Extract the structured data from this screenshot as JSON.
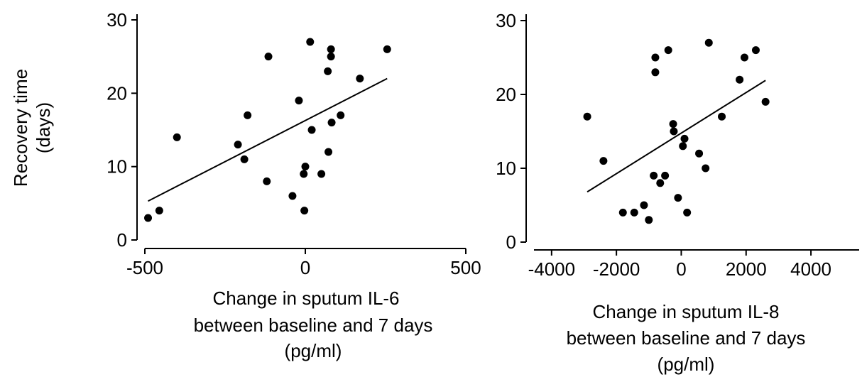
{
  "shared": {
    "ylabel_line1": "Recovery time",
    "ylabel_line2": "(days)"
  },
  "chart_data": [
    {
      "type": "scatter",
      "title": "",
      "xlabel": [
        "Change in sputum IL-6",
        "between baseline and 7 days",
        "(pg/ml)"
      ],
      "ylabel": "Recovery time (days)",
      "xlim": [
        -500,
        500
      ],
      "ylim": [
        0,
        30
      ],
      "xticks": [
        -500,
        0,
        500
      ],
      "yticks": [
        0,
        10,
        20,
        30
      ],
      "points": [
        {
          "x": -490,
          "y": 3
        },
        {
          "x": -455,
          "y": 4
        },
        {
          "x": -400,
          "y": 14
        },
        {
          "x": -210,
          "y": 13
        },
        {
          "x": -190,
          "y": 11
        },
        {
          "x": -180,
          "y": 17
        },
        {
          "x": -120,
          "y": 8
        },
        {
          "x": -115,
          "y": 25
        },
        {
          "x": -40,
          "y": 6
        },
        {
          "x": -20,
          "y": 19
        },
        {
          "x": -5,
          "y": 9
        },
        {
          "x": -3,
          "y": 4
        },
        {
          "x": 0,
          "y": 10
        },
        {
          "x": 15,
          "y": 27
        },
        {
          "x": 20,
          "y": 15
        },
        {
          "x": 50,
          "y": 9
        },
        {
          "x": 70,
          "y": 23
        },
        {
          "x": 72,
          "y": 12
        },
        {
          "x": 80,
          "y": 26
        },
        {
          "x": 80,
          "y": 25
        },
        {
          "x": 82,
          "y": 16
        },
        {
          "x": 110,
          "y": 17
        },
        {
          "x": 170,
          "y": 22
        },
        {
          "x": 255,
          "y": 26
        }
      ],
      "fit_line": {
        "x": [
          -490,
          255
        ],
        "y": [
          5.3,
          22
        ]
      },
      "grid": false,
      "legend": "none"
    },
    {
      "type": "scatter",
      "title": "",
      "xlabel": [
        "Change in sputum IL-8",
        "between baseline and 7 days",
        "(pg/ml)"
      ],
      "ylabel": "Recovery time (days)",
      "xlim": [
        -4500,
        5400
      ],
      "ylim": [
        0,
        30
      ],
      "xticks": [
        -4000,
        -2000,
        0,
        2000,
        4000
      ],
      "yticks": [
        0,
        10,
        20,
        30
      ],
      "points": [
        {
          "x": -2900,
          "y": 17
        },
        {
          "x": -2400,
          "y": 11
        },
        {
          "x": -1800,
          "y": 4
        },
        {
          "x": -1450,
          "y": 4
        },
        {
          "x": -1150,
          "y": 5
        },
        {
          "x": -1000,
          "y": 3
        },
        {
          "x": -850,
          "y": 9
        },
        {
          "x": -800,
          "y": 25
        },
        {
          "x": -800,
          "y": 23
        },
        {
          "x": -650,
          "y": 8
        },
        {
          "x": -500,
          "y": 9
        },
        {
          "x": -400,
          "y": 26
        },
        {
          "x": -250,
          "y": 16
        },
        {
          "x": -230,
          "y": 15
        },
        {
          "x": -100,
          "y": 6
        },
        {
          "x": 50,
          "y": 13
        },
        {
          "x": 100,
          "y": 14
        },
        {
          "x": 180,
          "y": 4
        },
        {
          "x": 550,
          "y": 12
        },
        {
          "x": 750,
          "y": 10
        },
        {
          "x": 850,
          "y": 27
        },
        {
          "x": 1250,
          "y": 17
        },
        {
          "x": 1800,
          "y": 22
        },
        {
          "x": 1950,
          "y": 25
        },
        {
          "x": 2300,
          "y": 26
        },
        {
          "x": 2600,
          "y": 19
        }
      ],
      "fit_line": {
        "x": [
          -2900,
          2600
        ],
        "y": [
          6.8,
          21.9
        ]
      },
      "grid": false,
      "legend": "none"
    }
  ]
}
